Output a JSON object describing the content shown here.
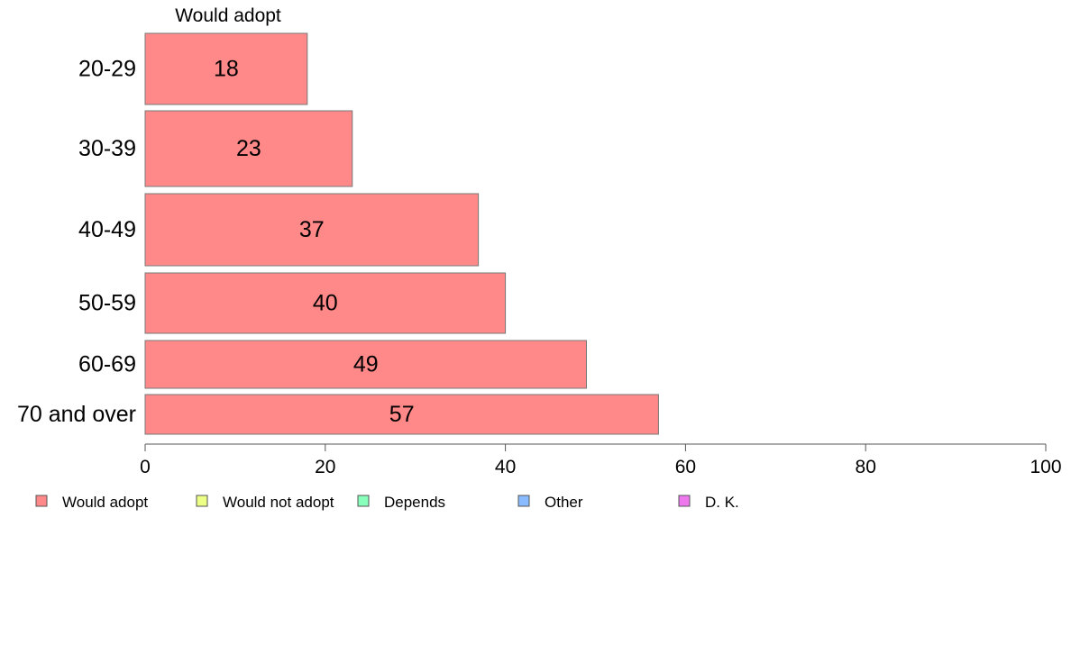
{
  "chart_data": {
    "type": "bar",
    "orientation": "horizontal",
    "title": "",
    "xlabel": "",
    "ylabel": "",
    "xlim": [
      0,
      100
    ],
    "x_ticks": [
      0,
      20,
      40,
      60,
      80,
      100
    ],
    "grid": false,
    "categories": [
      "20-29",
      "30-39",
      "40-49",
      "50-59",
      "60-69",
      "70 and over"
    ],
    "series": [
      {
        "name": "Would adopt",
        "color": "#ff8888",
        "values": [
          18,
          23,
          37,
          40,
          49,
          57
        ]
      }
    ],
    "data_labels": [
      "18",
      "23",
      "37",
      "40",
      "49",
      "57"
    ],
    "series_header": "Would adopt",
    "legend": {
      "position": "bottom-left",
      "entries": [
        {
          "label": "Would adopt",
          "color": "#ff8888"
        },
        {
          "label": "Would not adopt",
          "color": "#eeff88"
        },
        {
          "label": "Depends",
          "color": "#88ffbb"
        },
        {
          "label": "Other",
          "color": "#88bbff"
        },
        {
          "label": "D. K.",
          "color": "#ee77ee"
        }
      ]
    }
  }
}
